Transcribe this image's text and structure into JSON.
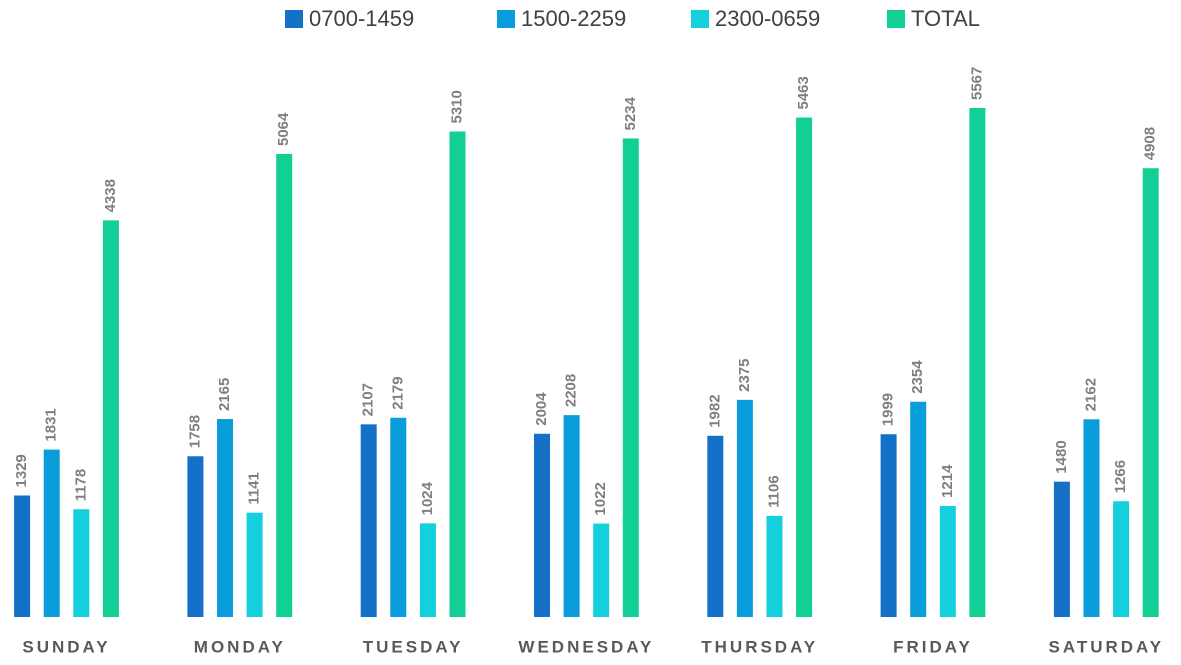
{
  "chart_data": {
    "type": "bar",
    "categories": [
      "SUNDAY",
      "MONDAY",
      "TUESDAY",
      "WEDNESDAY",
      "THURSDAY",
      "FRIDAY",
      "SATURDAY"
    ],
    "series": [
      {
        "name": "0700-1459",
        "color": "#1570c7",
        "values": [
          1329,
          1758,
          2107,
          2004,
          1982,
          1999,
          1480
        ]
      },
      {
        "name": "1500-2259",
        "color": "#0a9ddb",
        "values": [
          1831,
          2165,
          2179,
          2208,
          2375,
          2354,
          2162
        ]
      },
      {
        "name": "2300-0659",
        "color": "#14cfdc",
        "values": [
          1178,
          1141,
          1024,
          1022,
          1106,
          1214,
          1266
        ]
      },
      {
        "name": "TOTAL",
        "color": "#12cf96",
        "values": [
          4338,
          5064,
          5310,
          5234,
          5463,
          5567,
          4908
        ]
      }
    ],
    "legend": "top"
  }
}
